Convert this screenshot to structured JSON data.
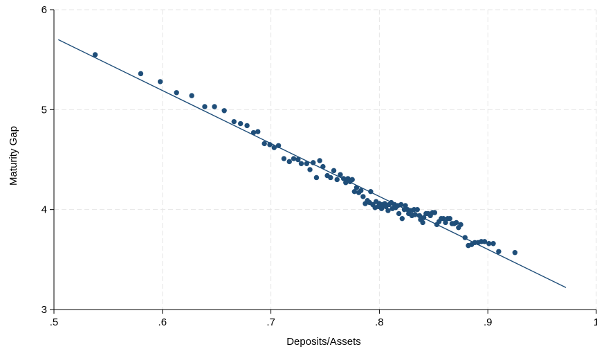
{
  "chart_data": {
    "type": "scatter",
    "xlabel": "Deposits/Assets",
    "ylabel": "Maturity Gap",
    "xlim": [
      0.5,
      1.0
    ],
    "ylim": [
      3.0,
      6.0
    ],
    "xticks": [
      ".5",
      ".6",
      ".7",
      ".8",
      ".9",
      "1"
    ],
    "yticks": [
      "3",
      "4",
      "5",
      "6"
    ],
    "grid": true,
    "colors": {
      "points": "#1f4e79",
      "line": "#1f4e79",
      "grid": "#e6e6e6"
    },
    "fit_line": {
      "x": [
        0.504,
        0.972
      ],
      "y": [
        5.7,
        3.22
      ]
    },
    "points": [
      [
        0.538,
        5.55
      ],
      [
        0.58,
        5.36
      ],
      [
        0.598,
        5.28
      ],
      [
        0.613,
        5.17
      ],
      [
        0.627,
        5.14
      ],
      [
        0.639,
        5.03
      ],
      [
        0.648,
        5.03
      ],
      [
        0.657,
        4.99
      ],
      [
        0.666,
        4.88
      ],
      [
        0.672,
        4.86
      ],
      [
        0.678,
        4.84
      ],
      [
        0.684,
        4.77
      ],
      [
        0.688,
        4.78
      ],
      [
        0.694,
        4.66
      ],
      [
        0.699,
        4.65
      ],
      [
        0.703,
        4.62
      ],
      [
        0.707,
        4.64
      ],
      [
        0.712,
        4.51
      ],
      [
        0.717,
        4.48
      ],
      [
        0.721,
        4.51
      ],
      [
        0.725,
        4.5
      ],
      [
        0.728,
        4.46
      ],
      [
        0.733,
        4.46
      ],
      [
        0.736,
        4.4
      ],
      [
        0.739,
        4.47
      ],
      [
        0.742,
        4.32
      ],
      [
        0.745,
        4.49
      ],
      [
        0.748,
        4.43
      ],
      [
        0.752,
        4.34
      ],
      [
        0.755,
        4.32
      ],
      [
        0.758,
        4.39
      ],
      [
        0.761,
        4.3
      ],
      [
        0.764,
        4.35
      ],
      [
        0.767,
        4.31
      ],
      [
        0.769,
        4.27
      ],
      [
        0.771,
        4.31
      ],
      [
        0.773,
        4.28
      ],
      [
        0.775,
        4.3
      ],
      [
        0.777,
        4.18
      ],
      [
        0.779,
        4.22
      ],
      [
        0.781,
        4.17
      ],
      [
        0.783,
        4.19
      ],
      [
        0.785,
        4.13
      ],
      [
        0.787,
        4.06
      ],
      [
        0.789,
        4.09
      ],
      [
        0.791,
        4.07
      ],
      [
        0.792,
        4.18
      ],
      [
        0.794,
        4.05
      ],
      [
        0.796,
        4.02
      ],
      [
        0.797,
        4.08
      ],
      [
        0.799,
        4.03
      ],
      [
        0.8,
        4.06
      ],
      [
        0.802,
        4.01
      ],
      [
        0.803,
        4.05
      ],
      [
        0.805,
        4.06
      ],
      [
        0.806,
        4.03
      ],
      [
        0.808,
        3.99
      ],
      [
        0.809,
        4.05
      ],
      [
        0.811,
        4.07
      ],
      [
        0.812,
        4.01
      ],
      [
        0.814,
        4.05
      ],
      [
        0.815,
        4.02
      ],
      [
        0.817,
        4.04
      ],
      [
        0.818,
        3.96
      ],
      [
        0.82,
        4.05
      ],
      [
        0.821,
        3.91
      ],
      [
        0.823,
        4.0
      ],
      [
        0.824,
        4.04
      ],
      [
        0.826,
        4.0
      ],
      [
        0.827,
        3.96
      ],
      [
        0.829,
        3.99
      ],
      [
        0.83,
        3.94
      ],
      [
        0.832,
        4.0
      ],
      [
        0.833,
        3.95
      ],
      [
        0.835,
        4.0
      ],
      [
        0.837,
        3.94
      ],
      [
        0.838,
        3.9
      ],
      [
        0.84,
        3.87
      ],
      [
        0.841,
        3.92
      ],
      [
        0.843,
        3.96
      ],
      [
        0.845,
        3.96
      ],
      [
        0.847,
        3.94
      ],
      [
        0.849,
        3.97
      ],
      [
        0.851,
        3.97
      ],
      [
        0.853,
        3.85
      ],
      [
        0.855,
        3.88
      ],
      [
        0.857,
        3.91
      ],
      [
        0.859,
        3.91
      ],
      [
        0.861,
        3.87
      ],
      [
        0.863,
        3.91
      ],
      [
        0.865,
        3.91
      ],
      [
        0.867,
        3.86
      ],
      [
        0.869,
        3.86
      ],
      [
        0.871,
        3.87
      ],
      [
        0.873,
        3.82
      ],
      [
        0.875,
        3.85
      ],
      [
        0.879,
        3.72
      ],
      [
        0.882,
        3.64
      ],
      [
        0.885,
        3.65
      ],
      [
        0.888,
        3.67
      ],
      [
        0.891,
        3.67
      ],
      [
        0.894,
        3.68
      ],
      [
        0.897,
        3.68
      ],
      [
        0.901,
        3.66
      ],
      [
        0.905,
        3.66
      ],
      [
        0.91,
        3.58
      ],
      [
        0.925,
        3.57
      ]
    ]
  }
}
